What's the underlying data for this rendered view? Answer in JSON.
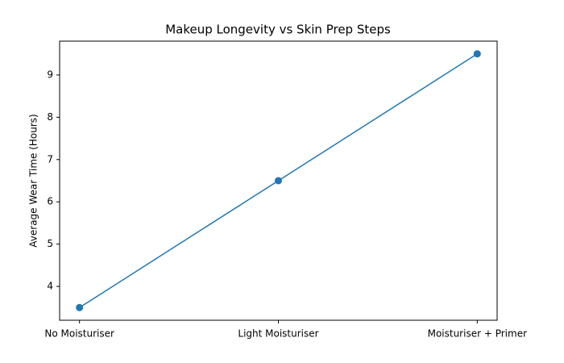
{
  "chart_data": {
    "type": "line",
    "title": "Makeup Longevity vs Skin Prep Steps",
    "y_label": "Average Wear Time (Hours)",
    "categories": [
      "No Moisturiser",
      "Light Moisturiser",
      "Moisturiser + Primer"
    ],
    "values": [
      3.5,
      6.5,
      9.5
    ],
    "color": "#1f77b4",
    "ylim": [
      3.2,
      9.8
    ],
    "yticks": [
      4,
      5,
      6,
      7,
      8,
      9
    ],
    "grid": false
  }
}
